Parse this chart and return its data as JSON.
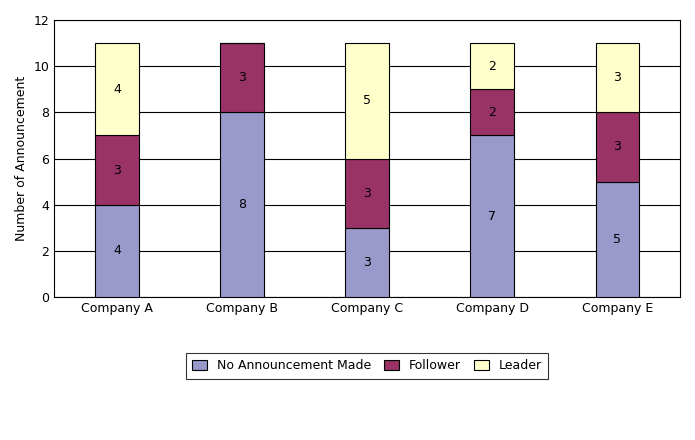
{
  "categories": [
    "Company A",
    "Company B",
    "Company C",
    "Company D",
    "Company E"
  ],
  "no_announcement": [
    4,
    8,
    3,
    7,
    5
  ],
  "follower": [
    3,
    3,
    3,
    2,
    3
  ],
  "leader": [
    4,
    0,
    5,
    2,
    3
  ],
  "color_no_announcement": "#9999CC",
  "color_follower": "#993366",
  "color_leader": "#FFFFCC",
  "ylabel": "Number of Announcement",
  "ylim": [
    0,
    12
  ],
  "yticks": [
    0,
    2,
    4,
    6,
    8,
    10,
    12
  ],
  "legend_labels": [
    "No Announcement Made",
    "Follower",
    "Leader"
  ],
  "bar_width": 0.35,
  "label_fontsize": 9,
  "axis_label_fontsize": 9,
  "tick_fontsize": 9,
  "figure_facecolor": "#ffffff",
  "axes_facecolor": "#ffffff"
}
